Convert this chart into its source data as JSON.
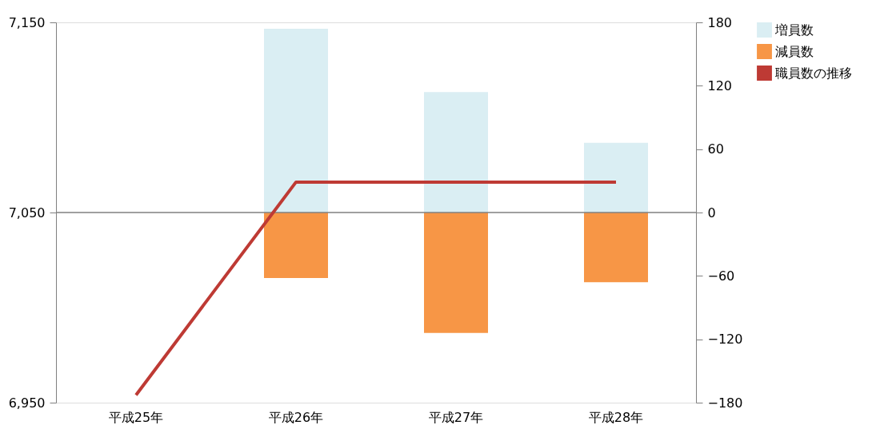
{
  "chart_data": {
    "type": "bar",
    "stacked": true,
    "categories": [
      "平成25年",
      "平成26年",
      "平成27年",
      "平成28年"
    ],
    "series": [
      {
        "name": "増員数",
        "color": "#daeef3",
        "axis": "y2",
        "values": [
          null,
          174,
          114,
          66
        ]
      },
      {
        "name": "減員数",
        "color": "#f79646",
        "axis": "y2",
        "values": [
          null,
          -62,
          -114,
          -66
        ]
      },
      {
        "name": "職員数の推移",
        "type": "line",
        "color": "#be3a34",
        "values": [
          6954,
          7066,
          7066,
          7066
        ]
      }
    ],
    "ylim": [
      6950,
      7150
    ],
    "yticks": [
      {
        "value": 6950,
        "label": "6,950"
      },
      {
        "value": 7050,
        "label": "7,050"
      },
      {
        "value": 7150,
        "label": "7,150"
      }
    ],
    "y2lim": [
      -180,
      180
    ],
    "y2ticks": [
      -180,
      -120,
      -60,
      0,
      60,
      120,
      180
    ],
    "ref_lines": [
      {
        "axis": "y2",
        "value": 0,
        "color": "#808080"
      }
    ],
    "legend": "top right",
    "grid": false,
    "marker": "none",
    "line_style": "solid"
  }
}
